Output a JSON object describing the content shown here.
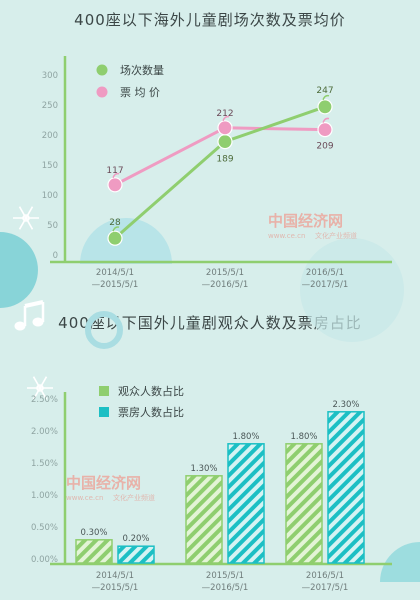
{
  "chart_data": [
    {
      "type": "line",
      "title": "400座以下海外儿童剧场次数及票均价",
      "categories": [
        "2014/5/1\n—2015/5/1",
        "2015/5/1\n—2016/5/1",
        "2016/5/1\n—2017/5/1"
      ],
      "yticks": [
        "0",
        "50",
        "100",
        "150",
        "200",
        "250",
        "300"
      ],
      "ylim": [
        0,
        300
      ],
      "legend_position": "top-left",
      "grid": false,
      "series": [
        {
          "name": "场次数量",
          "values": [
            28,
            189,
            247
          ],
          "labels": [
            "28",
            "189",
            "247"
          ],
          "color": "#8fce6f"
        },
        {
          "name": "票 均 价",
          "values": [
            117,
            212,
            209
          ],
          "labels": [
            "117",
            "212",
            "209"
          ],
          "color": "#ef9bc2"
        }
      ]
    },
    {
      "type": "bar",
      "title": "400座以下国外儿童剧观众人数及票房占比",
      "categories": [
        "2014/5/1\n—2015/5/1",
        "2015/5/1\n—2016/5/1",
        "2016/5/1\n—2017/5/1"
      ],
      "yticks": [
        "0.00%",
        "0.50%",
        "1.00%",
        "1.50%",
        "2.00%",
        "2.50%"
      ],
      "ylim": [
        0,
        2.5
      ],
      "legend_position": "top-left",
      "grid": false,
      "series": [
        {
          "name": "观众人数占比",
          "values": [
            0.3,
            1.3,
            1.8
          ],
          "labels": [
            "0.30%",
            "1.30%",
            "1.80%"
          ],
          "color": "#8fce6f"
        },
        {
          "name": "票房人数占比",
          "values": [
            0.2,
            1.8,
            2.3
          ],
          "labels": [
            "0.20%",
            "1.80%",
            "2.30%"
          ],
          "color": "#1cbfc4"
        }
      ]
    }
  ],
  "watermark": {
    "logo": "中国经济网",
    "url": "www.ce.cn",
    "sub": "文化产业频道"
  }
}
